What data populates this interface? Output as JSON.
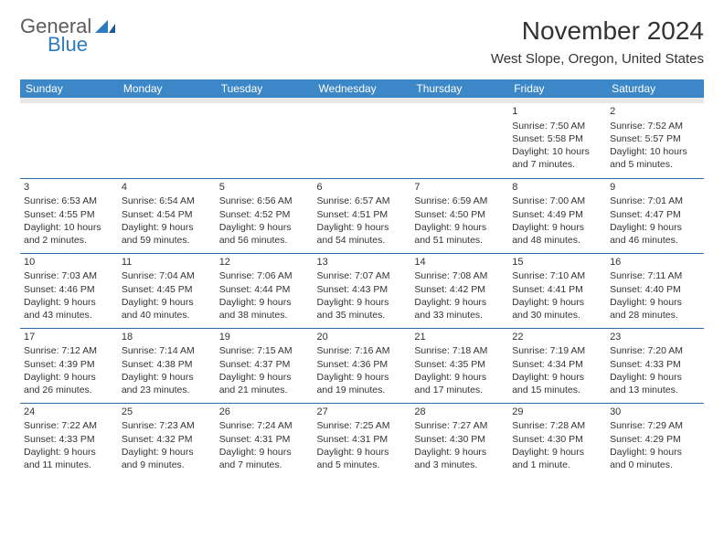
{
  "colors": {
    "header_bg": "#3b87c8",
    "header_text": "#ffffff",
    "cell_border": "#2e6da4",
    "text": "#333333",
    "spacer_bg": "#e8e8e8",
    "logo_gray": "#5c5c5c",
    "logo_blue": "#2e7bbf"
  },
  "logo": {
    "word1": "General",
    "word2": "Blue"
  },
  "title": "November 2024",
  "location": "West Slope, Oregon, United States",
  "day_headers": [
    "Sunday",
    "Monday",
    "Tuesday",
    "Wednesday",
    "Thursday",
    "Friday",
    "Saturday"
  ],
  "weeks": [
    [
      null,
      null,
      null,
      null,
      null,
      {
        "num": "1",
        "sunrise": "Sunrise: 7:50 AM",
        "sunset": "Sunset: 5:58 PM",
        "daylight": "Daylight: 10 hours and 7 minutes."
      },
      {
        "num": "2",
        "sunrise": "Sunrise: 7:52 AM",
        "sunset": "Sunset: 5:57 PM",
        "daylight": "Daylight: 10 hours and 5 minutes."
      }
    ],
    [
      {
        "num": "3",
        "sunrise": "Sunrise: 6:53 AM",
        "sunset": "Sunset: 4:55 PM",
        "daylight": "Daylight: 10 hours and 2 minutes."
      },
      {
        "num": "4",
        "sunrise": "Sunrise: 6:54 AM",
        "sunset": "Sunset: 4:54 PM",
        "daylight": "Daylight: 9 hours and 59 minutes."
      },
      {
        "num": "5",
        "sunrise": "Sunrise: 6:56 AM",
        "sunset": "Sunset: 4:52 PM",
        "daylight": "Daylight: 9 hours and 56 minutes."
      },
      {
        "num": "6",
        "sunrise": "Sunrise: 6:57 AM",
        "sunset": "Sunset: 4:51 PM",
        "daylight": "Daylight: 9 hours and 54 minutes."
      },
      {
        "num": "7",
        "sunrise": "Sunrise: 6:59 AM",
        "sunset": "Sunset: 4:50 PM",
        "daylight": "Daylight: 9 hours and 51 minutes."
      },
      {
        "num": "8",
        "sunrise": "Sunrise: 7:00 AM",
        "sunset": "Sunset: 4:49 PM",
        "daylight": "Daylight: 9 hours and 48 minutes."
      },
      {
        "num": "9",
        "sunrise": "Sunrise: 7:01 AM",
        "sunset": "Sunset: 4:47 PM",
        "daylight": "Daylight: 9 hours and 46 minutes."
      }
    ],
    [
      {
        "num": "10",
        "sunrise": "Sunrise: 7:03 AM",
        "sunset": "Sunset: 4:46 PM",
        "daylight": "Daylight: 9 hours and 43 minutes."
      },
      {
        "num": "11",
        "sunrise": "Sunrise: 7:04 AM",
        "sunset": "Sunset: 4:45 PM",
        "daylight": "Daylight: 9 hours and 40 minutes."
      },
      {
        "num": "12",
        "sunrise": "Sunrise: 7:06 AM",
        "sunset": "Sunset: 4:44 PM",
        "daylight": "Daylight: 9 hours and 38 minutes."
      },
      {
        "num": "13",
        "sunrise": "Sunrise: 7:07 AM",
        "sunset": "Sunset: 4:43 PM",
        "daylight": "Daylight: 9 hours and 35 minutes."
      },
      {
        "num": "14",
        "sunrise": "Sunrise: 7:08 AM",
        "sunset": "Sunset: 4:42 PM",
        "daylight": "Daylight: 9 hours and 33 minutes."
      },
      {
        "num": "15",
        "sunrise": "Sunrise: 7:10 AM",
        "sunset": "Sunset: 4:41 PM",
        "daylight": "Daylight: 9 hours and 30 minutes."
      },
      {
        "num": "16",
        "sunrise": "Sunrise: 7:11 AM",
        "sunset": "Sunset: 4:40 PM",
        "daylight": "Daylight: 9 hours and 28 minutes."
      }
    ],
    [
      {
        "num": "17",
        "sunrise": "Sunrise: 7:12 AM",
        "sunset": "Sunset: 4:39 PM",
        "daylight": "Daylight: 9 hours and 26 minutes."
      },
      {
        "num": "18",
        "sunrise": "Sunrise: 7:14 AM",
        "sunset": "Sunset: 4:38 PM",
        "daylight": "Daylight: 9 hours and 23 minutes."
      },
      {
        "num": "19",
        "sunrise": "Sunrise: 7:15 AM",
        "sunset": "Sunset: 4:37 PM",
        "daylight": "Daylight: 9 hours and 21 minutes."
      },
      {
        "num": "20",
        "sunrise": "Sunrise: 7:16 AM",
        "sunset": "Sunset: 4:36 PM",
        "daylight": "Daylight: 9 hours and 19 minutes."
      },
      {
        "num": "21",
        "sunrise": "Sunrise: 7:18 AM",
        "sunset": "Sunset: 4:35 PM",
        "daylight": "Daylight: 9 hours and 17 minutes."
      },
      {
        "num": "22",
        "sunrise": "Sunrise: 7:19 AM",
        "sunset": "Sunset: 4:34 PM",
        "daylight": "Daylight: 9 hours and 15 minutes."
      },
      {
        "num": "23",
        "sunrise": "Sunrise: 7:20 AM",
        "sunset": "Sunset: 4:33 PM",
        "daylight": "Daylight: 9 hours and 13 minutes."
      }
    ],
    [
      {
        "num": "24",
        "sunrise": "Sunrise: 7:22 AM",
        "sunset": "Sunset: 4:33 PM",
        "daylight": "Daylight: 9 hours and 11 minutes."
      },
      {
        "num": "25",
        "sunrise": "Sunrise: 7:23 AM",
        "sunset": "Sunset: 4:32 PM",
        "daylight": "Daylight: 9 hours and 9 minutes."
      },
      {
        "num": "26",
        "sunrise": "Sunrise: 7:24 AM",
        "sunset": "Sunset: 4:31 PM",
        "daylight": "Daylight: 9 hours and 7 minutes."
      },
      {
        "num": "27",
        "sunrise": "Sunrise: 7:25 AM",
        "sunset": "Sunset: 4:31 PM",
        "daylight": "Daylight: 9 hours and 5 minutes."
      },
      {
        "num": "28",
        "sunrise": "Sunrise: 7:27 AM",
        "sunset": "Sunset: 4:30 PM",
        "daylight": "Daylight: 9 hours and 3 minutes."
      },
      {
        "num": "29",
        "sunrise": "Sunrise: 7:28 AM",
        "sunset": "Sunset: 4:30 PM",
        "daylight": "Daylight: 9 hours and 1 minute."
      },
      {
        "num": "30",
        "sunrise": "Sunrise: 7:29 AM",
        "sunset": "Sunset: 4:29 PM",
        "daylight": "Daylight: 9 hours and 0 minutes."
      }
    ]
  ]
}
